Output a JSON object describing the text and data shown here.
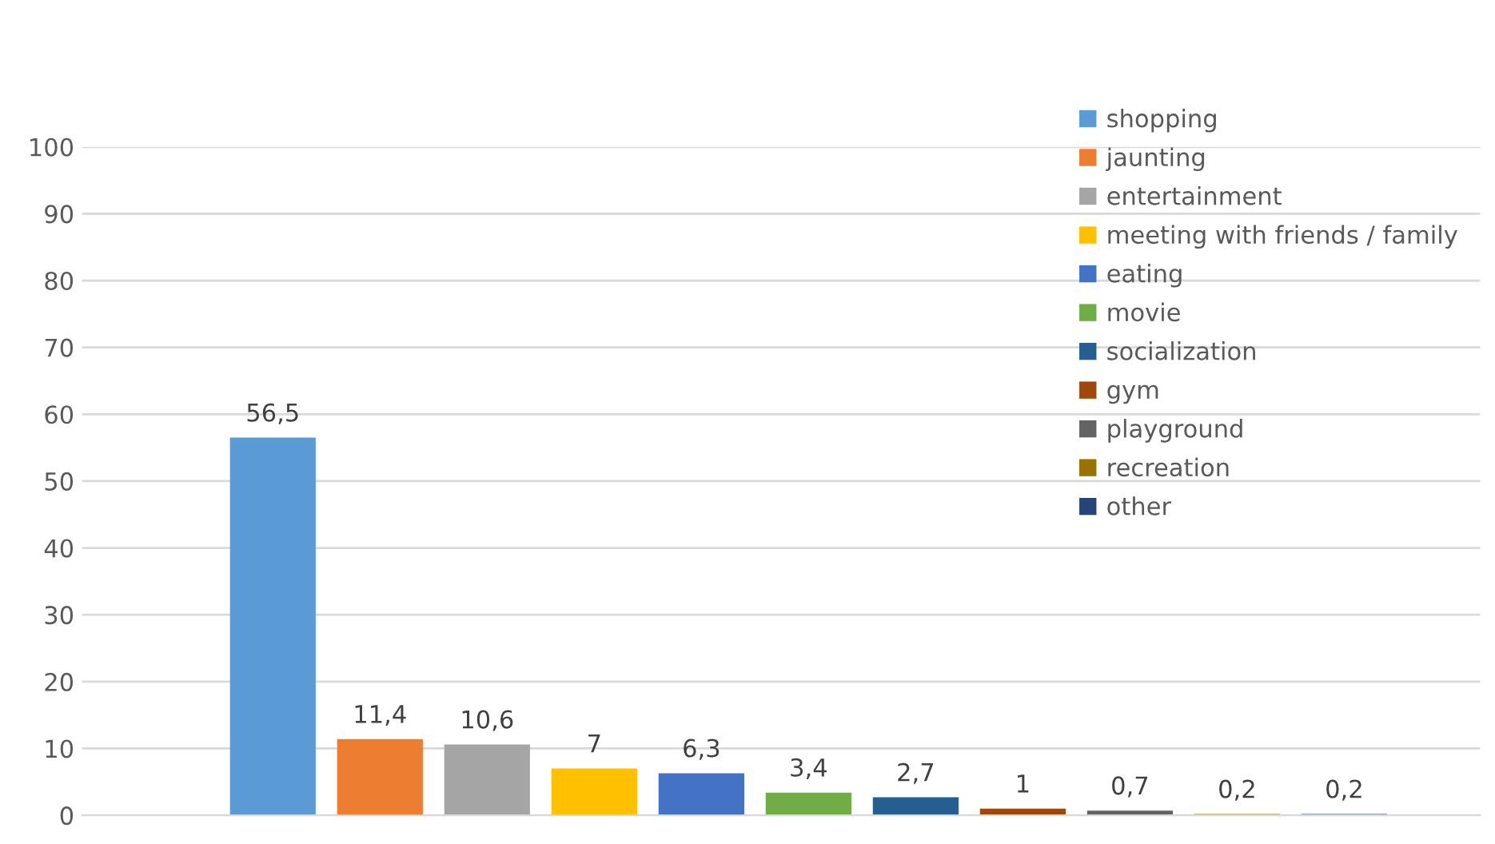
{
  "chart_data": {
    "type": "bar",
    "categories": [
      null
    ],
    "series": [
      {
        "name": "shopping",
        "color": "#5b9bd5",
        "values": [
          56.5
        ],
        "value_labels": [
          "56,5"
        ]
      },
      {
        "name": "jaunting",
        "color": "#ed7d31",
        "values": [
          11.4
        ],
        "value_labels": [
          "11,4"
        ]
      },
      {
        "name": "entertainment",
        "color": "#a5a5a5",
        "values": [
          10.6
        ],
        "value_labels": [
          "10,6"
        ]
      },
      {
        "name": "meeting with friends / family",
        "color": "#ffc000",
        "values": [
          7
        ],
        "value_labels": [
          "7"
        ]
      },
      {
        "name": "eating",
        "color": "#4472c4",
        "values": [
          6.3
        ],
        "value_labels": [
          "6,3"
        ]
      },
      {
        "name": "movie",
        "color": "#70ad47",
        "values": [
          3.4
        ],
        "value_labels": [
          "3,4"
        ]
      },
      {
        "name": "socialization",
        "color": "#255e91",
        "values": [
          2.7
        ],
        "value_labels": [
          "2,7"
        ]
      },
      {
        "name": "gym",
        "color": "#9e480e",
        "values": [
          1
        ],
        "value_labels": [
          "1"
        ]
      },
      {
        "name": "playground",
        "color": "#636363",
        "values": [
          0.7
        ],
        "value_labels": [
          "0,7"
        ]
      },
      {
        "name": "recreation",
        "color": "#997300",
        "values": [
          0.2
        ],
        "value_labels": [
          "0,2"
        ]
      },
      {
        "name": "other",
        "color": "#264478",
        "values": [
          0.2
        ],
        "value_labels": [
          "0,2"
        ]
      }
    ],
    "ylim": [
      0,
      100
    ],
    "yticks": [
      0,
      10,
      20,
      30,
      40,
      50,
      60,
      70,
      80,
      90,
      100
    ],
    "grid": "y",
    "legend": "top right"
  }
}
